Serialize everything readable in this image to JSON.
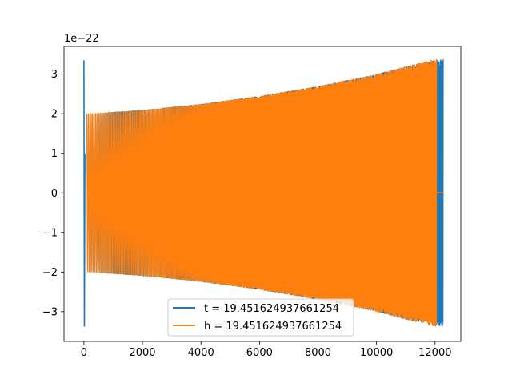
{
  "chart_data": {
    "type": "line",
    "title": "",
    "xlabel": "",
    "ylabel": "",
    "offset_text": "1e−22",
    "xlim": [
      -680,
      12880
    ],
    "ylim": [
      -3.75,
      3.7
    ],
    "xticks": [
      0,
      2000,
      4000,
      6000,
      8000,
      10000,
      12000
    ],
    "yticks": [
      -3,
      -2,
      -1,
      0,
      1,
      2,
      3
    ],
    "xtick_labels": [
      "0",
      "2000",
      "4000",
      "6000",
      "8000",
      "10000",
      "12000"
    ],
    "ytick_labels": [
      "−3",
      "−2",
      "−1",
      "0",
      "1",
      "2",
      "3"
    ],
    "grid": false,
    "legend_position": "lower center",
    "series": [
      {
        "name": "t = 19.451624937661254",
        "color": "#1f77b4",
        "start_spike": {
          "x": 0,
          "max": 3.35,
          "min": -3.38
        },
        "envelope": [
          [
            100,
            2.0
          ],
          [
            2000,
            2.1
          ],
          [
            4000,
            2.25
          ],
          [
            6000,
            2.45
          ],
          [
            8000,
            2.7
          ],
          [
            10000,
            3.0
          ],
          [
            11000,
            3.2
          ],
          [
            12000,
            3.35
          ],
          [
            12280,
            3.38
          ]
        ],
        "x_end": 12280
      },
      {
        "name": "h = 19.451624937661254",
        "color": "#ff7f0e",
        "envelope": [
          [
            100,
            2.0
          ],
          [
            2000,
            2.1
          ],
          [
            4000,
            2.25
          ],
          [
            6000,
            2.45
          ],
          [
            8000,
            2.7
          ],
          [
            10000,
            3.0
          ],
          [
            11000,
            3.2
          ],
          [
            12000,
            3.38
          ]
        ],
        "x_end": 12050,
        "tail": {
          "x_start": 12050,
          "x_end": 12280,
          "value": 0
        }
      }
    ]
  }
}
